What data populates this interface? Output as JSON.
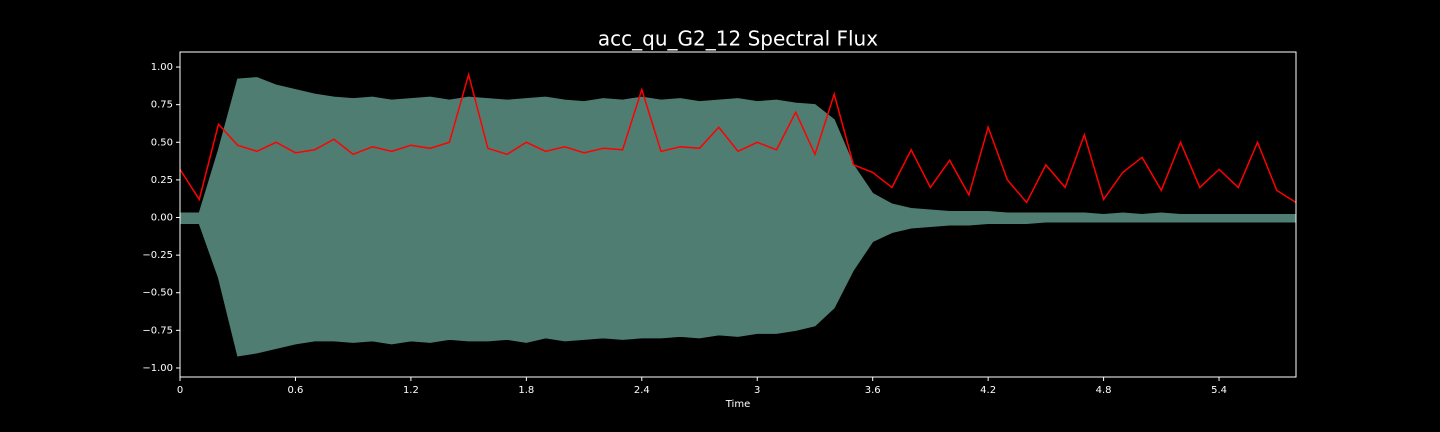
{
  "chart_data": {
    "type": "line",
    "title": "acc_qu_G2_12 Spectral Flux",
    "x_label": "Time",
    "x": [
      0,
      0.1,
      0.2,
      0.3,
      0.4,
      0.5,
      0.6,
      0.7,
      0.8,
      0.9,
      1.0,
      1.1,
      1.2,
      1.3,
      1.4,
      1.5,
      1.6,
      1.7,
      1.8,
      1.9,
      2.0,
      2.1,
      2.2,
      2.3,
      2.4,
      2.5,
      2.6,
      2.7,
      2.8,
      2.9,
      3.0,
      3.1,
      3.2,
      3.3,
      3.4,
      3.5,
      3.6,
      3.7,
      3.8,
      3.9,
      4.0,
      4.1,
      4.2,
      4.3,
      4.4,
      4.5,
      4.6,
      4.7,
      4.8,
      4.9,
      5.0,
      5.1,
      5.2,
      5.3,
      5.4,
      5.5,
      5.6,
      5.7,
      5.8
    ],
    "series": [
      {
        "type": "band",
        "color": "#4f7d72",
        "values": [
          0.03,
          0.03,
          0.45,
          0.92,
          0.93,
          0.88,
          0.85,
          0.82,
          0.8,
          0.79,
          0.8,
          0.78,
          0.79,
          0.8,
          0.78,
          0.8,
          0.79,
          0.78,
          0.79,
          0.8,
          0.78,
          0.77,
          0.79,
          0.78,
          0.8,
          0.78,
          0.79,
          0.77,
          0.78,
          0.79,
          0.77,
          0.78,
          0.76,
          0.75,
          0.65,
          0.35,
          0.16,
          0.09,
          0.06,
          0.05,
          0.04,
          0.04,
          0.04,
          0.03,
          0.03,
          0.03,
          0.03,
          0.03,
          0.02,
          0.03,
          0.02,
          0.03,
          0.02,
          0.02,
          0.02,
          0.02,
          0.02,
          0.02,
          0.02
        ],
        "low_values": [
          -0.04,
          -0.04,
          -0.4,
          -0.92,
          -0.9,
          -0.87,
          -0.84,
          -0.82,
          -0.82,
          -0.83,
          -0.82,
          -0.84,
          -0.82,
          -0.83,
          -0.81,
          -0.82,
          -0.82,
          -0.81,
          -0.83,
          -0.8,
          -0.82,
          -0.81,
          -0.8,
          -0.81,
          -0.8,
          -0.8,
          -0.79,
          -0.8,
          -0.78,
          -0.79,
          -0.77,
          -0.77,
          -0.75,
          -0.72,
          -0.6,
          -0.35,
          -0.16,
          -0.1,
          -0.07,
          -0.06,
          -0.05,
          -0.05,
          -0.04,
          -0.04,
          -0.04,
          -0.03,
          -0.03,
          -0.03,
          -0.03,
          -0.03,
          -0.03,
          -0.03,
          -0.03,
          -0.03,
          -0.03,
          -0.03,
          -0.03,
          -0.03,
          -0.03
        ]
      },
      {
        "type": "line",
        "color": "#ff0000",
        "values": [
          0.32,
          0.12,
          0.62,
          0.48,
          0.44,
          0.5,
          0.43,
          0.45,
          0.52,
          0.42,
          0.47,
          0.44,
          0.48,
          0.46,
          0.5,
          0.95,
          0.46,
          0.42,
          0.5,
          0.44,
          0.47,
          0.43,
          0.46,
          0.45,
          0.85,
          0.44,
          0.47,
          0.46,
          0.6,
          0.44,
          0.5,
          0.45,
          0.7,
          0.42,
          0.82,
          0.35,
          0.3,
          0.2,
          0.45,
          0.2,
          0.38,
          0.15,
          0.6,
          0.25,
          0.1,
          0.35,
          0.2,
          0.55,
          0.12,
          0.3,
          0.4,
          0.18,
          0.5,
          0.2,
          0.32,
          0.2,
          0.5,
          0.18,
          0.1
        ]
      }
    ],
    "xlim": [
      0,
      5.8
    ],
    "ylim": [
      -1.06,
      1.1
    ],
    "xticks": [
      0,
      0.6,
      1.2,
      1.8,
      2.4,
      3,
      3.6,
      4.2,
      4.8,
      5.4
    ],
    "yticks": [
      {
        "value": 1,
        "label": "1.00"
      },
      {
        "value": 0.75,
        "label": "0.75"
      },
      {
        "value": 0.5,
        "label": "0.50"
      },
      {
        "value": 0.25,
        "label": "0.25"
      },
      {
        "value": 0,
        "label": "0.00"
      },
      {
        "value": -0.25,
        "label": "−0.25"
      },
      {
        "value": -0.5,
        "label": "−0.50"
      },
      {
        "value": -0.75,
        "label": "−0.75"
      },
      {
        "value": -1,
        "label": "−1.00"
      }
    ]
  }
}
